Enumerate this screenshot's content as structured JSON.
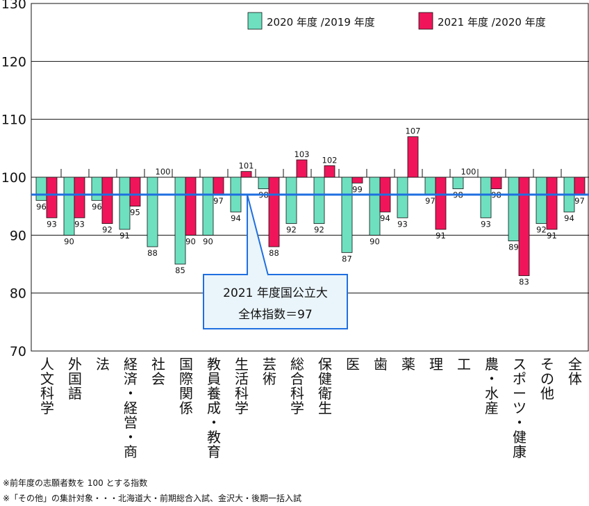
{
  "chart_data": {
    "type": "bar",
    "categories": [
      "人文科学",
      "外国語",
      "法",
      "経済・経営・商",
      "社会",
      "国際関係",
      "教員養成・教育",
      "生活科学",
      "芸術",
      "総合科学",
      "保健衛生",
      "医",
      "歯",
      "薬",
      "理",
      "工",
      "農・水産",
      "スポーツ・健康",
      "その他",
      "全体"
    ],
    "series": [
      {
        "name": "2020 年度 /2019 年度",
        "color": "#6ee0c0",
        "values": [
          96,
          90,
          96,
          91,
          88,
          85,
          90,
          94,
          98,
          92,
          92,
          87,
          90,
          93,
          97,
          98,
          93,
          89,
          92,
          94
        ]
      },
      {
        "name": "2021 年度 /2020 年度",
        "color": "#f0155a",
        "values": [
          93,
          93,
          92,
          95,
          100,
          90,
          97,
          101,
          88,
          103,
          102,
          99,
          94,
          107,
          91,
          100,
          98,
          83,
          91,
          97
        ]
      }
    ],
    "baseline": 100,
    "ylim": [
      70,
      130
    ],
    "yticks": [
      "70",
      "80",
      "90",
      "100",
      "110",
      "120",
      "130"
    ],
    "reference_line": {
      "value": 97,
      "color": "#1f6fe0"
    },
    "grid": true,
    "legend": "top-right"
  },
  "callout": {
    "line1": "2021 年度国公立大",
    "line2": "全体指数＝97"
  },
  "footnotes": [
    "※前年度の志願者数を 100 とする指数",
    "※「その他」の集計対象・・・北海道大・前期総合入試、金沢大・後期一括入試"
  ]
}
